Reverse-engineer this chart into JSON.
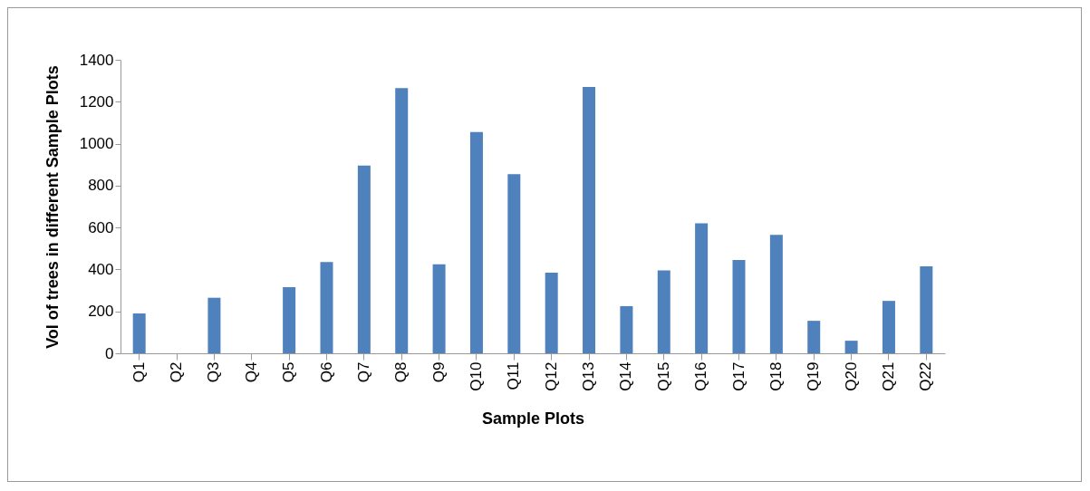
{
  "chart_data": {
    "type": "bar",
    "xlabel": "Sample Plots",
    "ylabel": "Vol of trees in different Sample Plots",
    "categories": [
      "Q1",
      "Q2",
      "Q3",
      "Q4",
      "Q5",
      "Q6",
      "Q7",
      "Q8",
      "Q9",
      "Q10",
      "Q11",
      "Q12",
      "Q13",
      "Q14",
      "Q15",
      "Q16",
      "Q17",
      "Q18",
      "Q19",
      "Q20",
      "Q21",
      "Q22"
    ],
    "values": [
      190,
      0,
      265,
      0,
      315,
      435,
      895,
      1265,
      425,
      1055,
      855,
      385,
      1270,
      225,
      395,
      620,
      445,
      565,
      155,
      60,
      250,
      415
    ],
    "color": "#4f81bd",
    "ylim": [
      0,
      1400
    ],
    "yticks": [
      0,
      200,
      400,
      600,
      800,
      1000,
      1200,
      1400
    ],
    "grid": false
  }
}
